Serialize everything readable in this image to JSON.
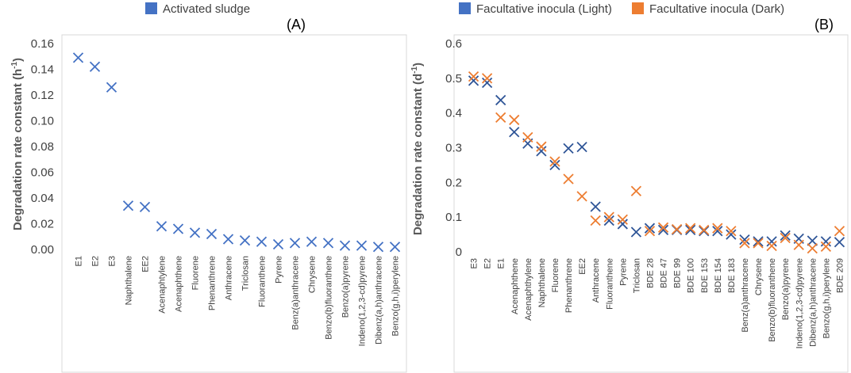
{
  "chart_data": [
    {
      "type": "scatter",
      "panel_label": "(A)",
      "ylabel": "Degradation rate constant (h",
      "ylabel_sup": "-1",
      "ylabel_end": ")",
      "ylim": [
        0,
        0.16
      ],
      "yticks": [
        0,
        0.02,
        0.04,
        0.06,
        0.08,
        0.1,
        0.12,
        0.14,
        0.16
      ],
      "ytick_labels": [
        "0.00",
        "0.02",
        "0.04",
        "0.06",
        "0.08",
        "0.10",
        "0.12",
        "0.14",
        "0.16"
      ],
      "legend_position": "top",
      "categories": [
        "E1",
        "E2",
        "E3",
        "Naphthalene",
        "EE2",
        "Acenaphtylene",
        "Acenaphthene",
        "Fluorene",
        "Phenanthrene",
        "Anthracene",
        "Triclosan",
        "Fluoranthene",
        "Pyrene",
        "Benz(a)anthracene",
        "Chrysene",
        "Benzo(b)fluoranthene",
        "Benzo(a)pyrene",
        "Indeno(1,2,3-cd)pyrene",
        "Dibenz(a,h)anthracene",
        "Benzo(g,h,i)perylene"
      ],
      "series": [
        {
          "name": "Activated sludge",
          "color": "#4472C4",
          "values": [
            0.149,
            0.142,
            0.126,
            0.034,
            0.033,
            0.018,
            0.016,
            0.013,
            0.012,
            0.008,
            0.007,
            0.006,
            0.004,
            0.005,
            0.006,
            0.005,
            0.003,
            0.003,
            0.002,
            0.002
          ]
        }
      ]
    },
    {
      "type": "scatter",
      "panel_label": "(B)",
      "ylabel": "Degradation rate constant (d",
      "ylabel_sup": "-1",
      "ylabel_end": ")",
      "ylim": [
        0,
        0.6
      ],
      "yticks": [
        0,
        0.1,
        0.2,
        0.3,
        0.4,
        0.5,
        0.6
      ],
      "ytick_labels": [
        "0",
        "0.1",
        "0.2",
        "0.3",
        "0.4",
        "0.5",
        "0.6"
      ],
      "legend_position": "top",
      "categories": [
        "E3",
        "E2",
        "E1",
        "Acenaphthene",
        "Acenaphthylene",
        "Naphthalene",
        "Fluorene",
        "Phenanthrene",
        "EE2",
        "Anthracene",
        "Fluoranthene",
        "Pyrene",
        "Triclosan",
        "BDE 28",
        "BDE 47",
        "BDE 99",
        "BDE 100",
        "BDE 153",
        "BDE 154",
        "BDE 183",
        "Benz(a)anthracene",
        "Chrysene",
        "Benzo(b)fluoranthene",
        "Benzo(a)pyrene",
        "Indeno(1,2,3-cd)pyrene",
        "Dibenz(a,h)anthracene",
        "Benzo(g,h,i)perylene",
        "BDE 209"
      ],
      "series": [
        {
          "name": "Facultative inocula (Light)",
          "color": "#2F5597",
          "values": [
            0.493,
            0.487,
            0.437,
            0.345,
            0.312,
            0.29,
            0.25,
            0.298,
            0.302,
            0.13,
            0.09,
            0.08,
            0.057,
            0.068,
            0.063,
            0.063,
            0.063,
            0.06,
            0.06,
            0.05,
            0.035,
            0.03,
            0.03,
            0.047,
            0.038,
            0.032,
            0.03,
            0.028
          ]
        },
        {
          "name": "Facultative inocula (Dark)",
          "color": "#ED7D31",
          "values": [
            0.505,
            0.5,
            0.387,
            0.38,
            0.33,
            0.303,
            0.26,
            0.21,
            0.16,
            0.09,
            0.1,
            0.093,
            0.175,
            0.06,
            0.07,
            0.065,
            0.068,
            0.063,
            0.068,
            0.06,
            0.025,
            0.025,
            0.017,
            0.04,
            0.02,
            0.01,
            0.015,
            0.06
          ]
        }
      ]
    }
  ]
}
